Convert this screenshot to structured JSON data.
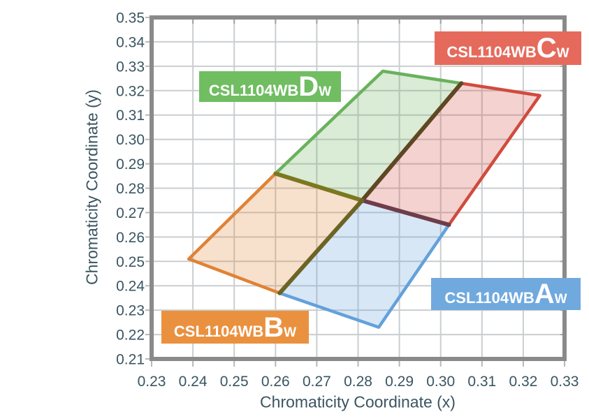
{
  "chart_data": {
    "type": "area",
    "xlabel": "Chromaticity Coordinate (x)",
    "ylabel": "Chromaticity Coordinate (y)",
    "xlim": [
      0.23,
      0.33
    ],
    "ylim": [
      0.21,
      0.35
    ],
    "grid": true,
    "legend_position": "none",
    "xticks": {
      "values": [
        0.23,
        0.24,
        0.25,
        0.26,
        0.27,
        0.28,
        0.29,
        0.3,
        0.31,
        0.32,
        0.33
      ],
      "labels": [
        "0.23",
        "0.24",
        "0.25",
        "0.26",
        "0.27",
        "0.28",
        "0.29",
        "0.30",
        "0.31",
        "0.32",
        "0.33"
      ]
    },
    "yticks": {
      "values": [
        0.21,
        0.22,
        0.23,
        0.24,
        0.25,
        0.26,
        0.27,
        0.28,
        0.29,
        0.3,
        0.31,
        0.32,
        0.33,
        0.34,
        0.35
      ],
      "labels": [
        "0.21",
        "0.22",
        "0.23",
        "0.24",
        "0.25",
        "0.26",
        "0.27",
        "0.28",
        "0.29",
        "0.30",
        "0.31",
        "0.32",
        "0.33",
        "0.34",
        "0.35"
      ]
    },
    "style": {
      "axis_text_color": "#3a5561",
      "grid_color": "#caced0",
      "border_color": "#8a8a8a",
      "tick_color": "#b4b9bc",
      "fill_opacity": 0.25
    },
    "regions": [
      {
        "id": "Dw",
        "product": "CSL1104WB",
        "rank": "D",
        "rank_suffix": "W",
        "color": "#6ab15c",
        "label_bg": "#70bd62",
        "points": [
          [
            0.26,
            0.286
          ],
          [
            0.286,
            0.328
          ],
          [
            0.305,
            0.323
          ],
          [
            0.281,
            0.275
          ]
        ]
      },
      {
        "id": "Cw",
        "product": "CSL1104WB",
        "rank": "C",
        "rank_suffix": "W",
        "color": "#d04b3e",
        "label_bg": "#e56a5c",
        "points": [
          [
            0.305,
            0.323
          ],
          [
            0.324,
            0.318
          ],
          [
            0.302,
            0.265
          ],
          [
            0.281,
            0.275
          ]
        ]
      },
      {
        "id": "Bw",
        "product": "CSL1104WB",
        "rank": "B",
        "rank_suffix": "W",
        "color": "#e08235",
        "label_bg": "#ea913f",
        "points": [
          [
            0.239,
            0.251
          ],
          [
            0.26,
            0.286
          ],
          [
            0.281,
            0.275
          ],
          [
            0.261,
            0.237
          ]
        ]
      },
      {
        "id": "Aw",
        "product": "CSL1104WB",
        "rank": "A",
        "rank_suffix": "W",
        "color": "#63a1da",
        "label_bg": "#70a9de",
        "points": [
          [
            0.261,
            0.237
          ],
          [
            0.281,
            0.275
          ],
          [
            0.302,
            0.265
          ],
          [
            0.285,
            0.223
          ]
        ]
      }
    ],
    "outer_edges": [
      {
        "region": "Dw",
        "points": [
          [
            0.26,
            0.286
          ],
          [
            0.286,
            0.328
          ],
          [
            0.305,
            0.323
          ]
        ]
      },
      {
        "region": "Cw",
        "points": [
          [
            0.305,
            0.323
          ],
          [
            0.324,
            0.318
          ],
          [
            0.302,
            0.265
          ]
        ]
      },
      {
        "region": "Bw",
        "points": [
          [
            0.261,
            0.237
          ],
          [
            0.239,
            0.251
          ],
          [
            0.26,
            0.286
          ]
        ]
      },
      {
        "region": "Aw",
        "points": [
          [
            0.302,
            0.265
          ],
          [
            0.285,
            0.223
          ],
          [
            0.261,
            0.237
          ]
        ]
      }
    ],
    "shared_edges": [
      {
        "between": "Dw-Cw",
        "points": [
          [
            0.305,
            0.323
          ],
          [
            0.281,
            0.275
          ]
        ],
        "color": "#5f4723"
      },
      {
        "between": "Dw-Bw",
        "points": [
          [
            0.26,
            0.286
          ],
          [
            0.281,
            0.275
          ]
        ],
        "color": "#7c7820"
      },
      {
        "between": "Cw-Aw",
        "points": [
          [
            0.281,
            0.275
          ],
          [
            0.302,
            0.265
          ]
        ],
        "color": "#6e3d4a"
      },
      {
        "between": "Bw-Aw",
        "points": [
          [
            0.281,
            0.275
          ],
          [
            0.261,
            0.237
          ]
        ],
        "color": "#6c6424"
      }
    ]
  }
}
